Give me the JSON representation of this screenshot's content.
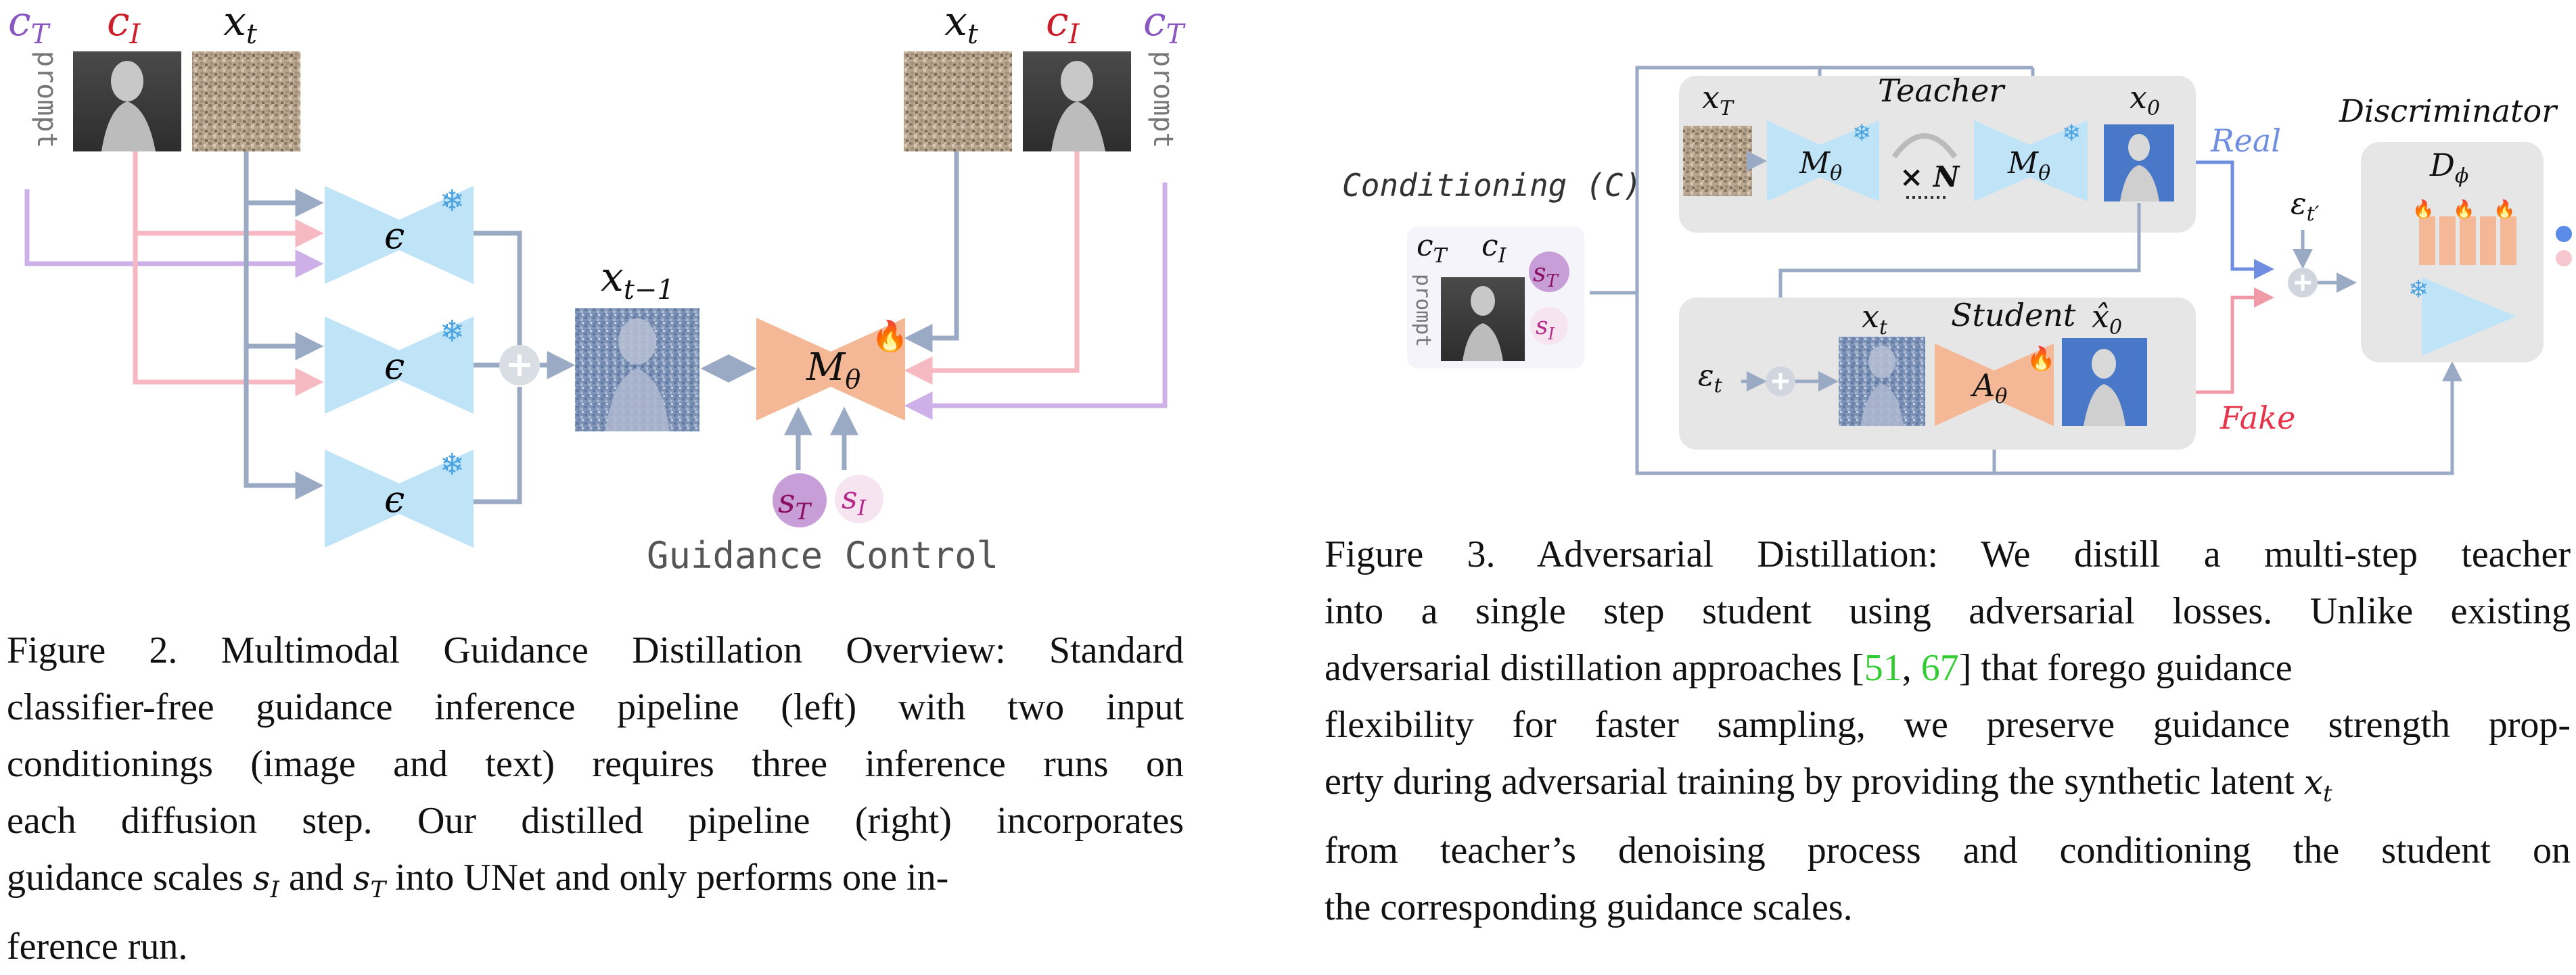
{
  "figure2": {
    "labels": {
      "cT_left": "c",
      "cT_left_sub": "T",
      "cI_left": "c",
      "cI_left_sub": "I",
      "xt_left": "x",
      "xt_left_sub": "t",
      "prompt_left": "prompt",
      "eps1": "ϵ",
      "eps2": "ϵ",
      "eps3": "ϵ",
      "xtm1": "x",
      "xtm1_sub": "t−1",
      "model": "M",
      "model_sub": "θ",
      "xt_right": "x",
      "xt_right_sub": "t",
      "cI_right": "c",
      "cI_right_sub": "I",
      "cT_right": "c",
      "cT_right_sub": "T",
      "prompt_right": "prompt",
      "sT": "s",
      "sT_sub": "T",
      "sI": "s",
      "sI_sub": "I",
      "guidance_control": "Guidance Control"
    },
    "caption": {
      "lines": [
        "Figure 2.  Multimodal Guidance Distillation Overview:  Standard",
        "classifier-free guidance inference pipeline (left) with two input",
        "conditionings (image and text) requires three inference runs on",
        "each diffusion step.  Our distilled pipeline (right) incorporates"
      ],
      "line5_a": "guidance scales ",
      "line5_b": " and ",
      "line5_c": " into UNet and only performs one in-",
      "line6": "ference run."
    }
  },
  "figure3": {
    "labels": {
      "conditioning": "Conditioning (C)",
      "cT": "c",
      "cT_sub": "T",
      "cI": "c",
      "cI_sub": "I",
      "prompt": "prompt",
      "sT": "s",
      "sT_sub": "T",
      "sI": "s",
      "sI_sub": "I",
      "xT": "x",
      "xT_sub": "T",
      "teacher": "Teacher",
      "x0": "x",
      "x0_sub": "0",
      "m1": "M",
      "m1_sub": "θ",
      "times_n": "× N",
      "m2": "M",
      "m2_sub": "θ",
      "real": "Real",
      "fake": "Fake",
      "eps_tprime": "ε",
      "eps_tprime_sub": "t′",
      "discriminator": "Discriminator",
      "d_phi": "D",
      "d_phi_sub": "ϕ",
      "eps_t": "ε",
      "eps_t_sub": "t",
      "xt": "x",
      "xt_sub": "t",
      "student": "Student",
      "x0hat": "x̂",
      "x0hat_sub": "0",
      "a_theta": "A",
      "a_theta_sub": "θ"
    },
    "caption": {
      "line1": "Figure 3.  Adversarial Distillation:  We distill a multi-step teacher",
      "line2": "into a single step student using adversarial losses.  Unlike existing",
      "line3_a": "adversarial distillation approaches [",
      "cite1": "51",
      "line3_b": ", ",
      "cite2": "67",
      "line3_c": "] that forego guidance",
      "line4": "flexibility for faster sampling, we preserve guidance strength prop-",
      "line5_a": "erty during adversarial training by providing the synthetic latent ",
      "line6": "from teacher’s denoising process and conditioning the student on",
      "line7": "the corresponding guidance scales."
    }
  },
  "colors": {
    "cT": "#8a56c2",
    "cI": "#cc1e2a",
    "blue_net": "#bfe4f7",
    "orange_net": "#f5b896",
    "gray_arrow": "#9aa9c4",
    "pink_arrow": "#f6b9c1",
    "purple_arrow": "#cdb0e8",
    "real": "#6f8ee0",
    "fake": "#e8324a",
    "cite": "#33cc33",
    "panel": "#e6e6e6"
  }
}
